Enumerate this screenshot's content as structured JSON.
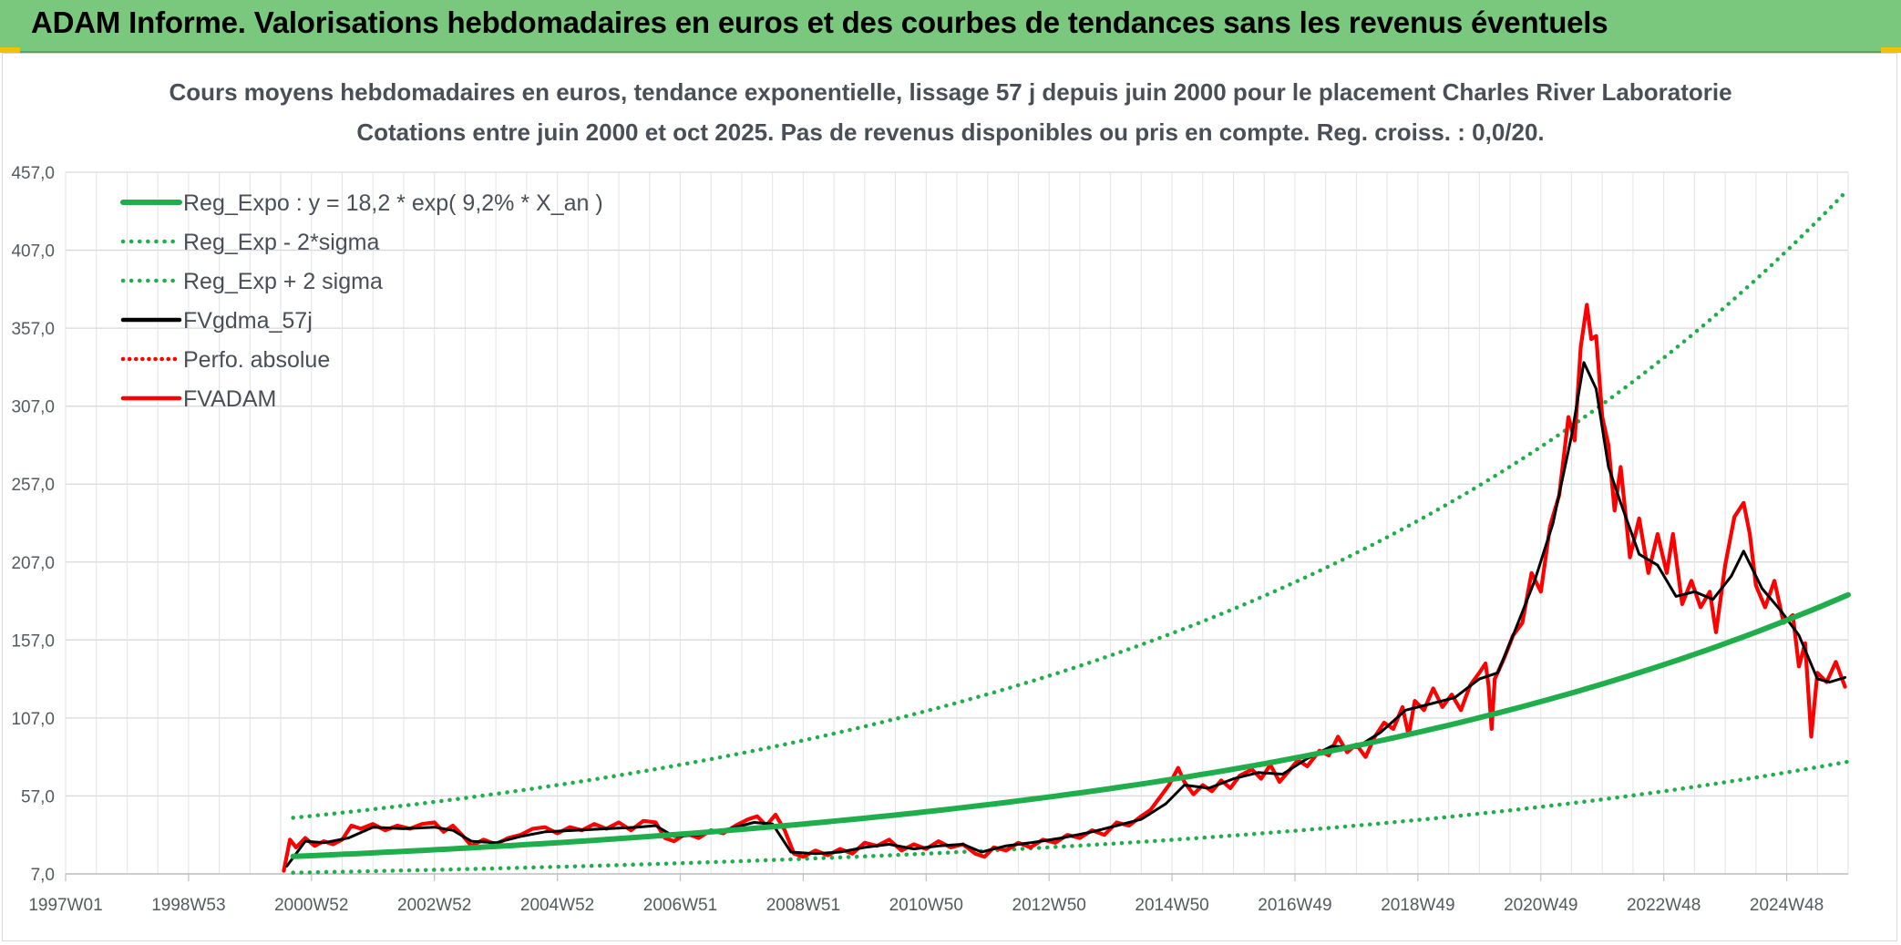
{
  "banner": {
    "title": "ADAM Informe. Valorisations hebdomadaires en euros et des courbes de tendances sans les revenus éventuels",
    "color": "#7ac77e"
  },
  "chart_data": {
    "type": "line",
    "title": "Cours moyens hebdomadaires en euros, tendance exponentielle, lissage 57 j depuis juin 2000 pour le placement Charles River Laboratorie",
    "subtitle": "Cotations entre juin 2000 et oct 2025. Pas de revenus disponibles ou pris en compte. Reg. croiss. : 0,0/20.",
    "xlabel": "",
    "ylabel": "",
    "grid": true,
    "legend_position": "top-left",
    "xlim": [
      1997.0,
      2026.0
    ],
    "ylim": [
      7,
      457
    ],
    "y_ticks": [
      "7,0",
      "57,0",
      "107,0",
      "157,0",
      "207,0",
      "257,0",
      "307,0",
      "357,0",
      "407,0",
      "457,0"
    ],
    "x_ticks": [
      {
        "label": "1997W01",
        "t": 1997.0
      },
      {
        "label": "1998W53",
        "t": 1999.0
      },
      {
        "label": "2000W52",
        "t": 2001.0
      },
      {
        "label": "2002W52",
        "t": 2003.0
      },
      {
        "label": "2004W52",
        "t": 2005.0
      },
      {
        "label": "2006W51",
        "t": 2007.0
      },
      {
        "label": "2008W51",
        "t": 2009.0
      },
      {
        "label": "2010W50",
        "t": 2011.0
      },
      {
        "label": "2012W50",
        "t": 2013.0
      },
      {
        "label": "2014W50",
        "t": 2015.0
      },
      {
        "label": "2016W49",
        "t": 2017.0
      },
      {
        "label": "2018W49",
        "t": 2019.0
      },
      {
        "label": "2020W49",
        "t": 2021.0
      },
      {
        "label": "2022W48",
        "t": 2023.0
      },
      {
        "label": "2024W48",
        "t": 2025.0
      }
    ],
    "series": [
      {
        "name": "Reg_Expo : y = 18,2 * exp( 9,2% *  X_an )",
        "key": "reg",
        "color": "#1fae4b",
        "style": "solid",
        "points": [
          [
            2000.7,
            18.2
          ],
          [
            2026.0,
            186.0
          ]
        ]
      },
      {
        "name": "Reg_Exp - 2*sigma",
        "key": "reg_low",
        "color": "#1fae4b",
        "style": "dotted",
        "points": [
          [
            2000.7,
            7.8
          ],
          [
            2026.0,
            79.0
          ]
        ]
      },
      {
        "name": "Reg_Exp + 2 sigma",
        "key": "reg_high",
        "color": "#1fae4b",
        "style": "dotted",
        "points": [
          [
            2000.7,
            43.0
          ],
          [
            2026.0,
            446.0
          ]
        ]
      },
      {
        "name": "FVgdma_57j",
        "key": "fvgdma",
        "color": "#000000",
        "style": "solid",
        "points": [
          [
            2000.6,
            12
          ],
          [
            2000.9,
            28
          ],
          [
            2001.2,
            27
          ],
          [
            2001.6,
            30
          ],
          [
            2002.0,
            37
          ],
          [
            2002.5,
            36
          ],
          [
            2003.0,
            37
          ],
          [
            2003.3,
            35
          ],
          [
            2003.6,
            28
          ],
          [
            2004.0,
            27
          ],
          [
            2004.4,
            31
          ],
          [
            2004.8,
            34
          ],
          [
            2005.3,
            35
          ],
          [
            2005.8,
            36
          ],
          [
            2006.3,
            37
          ],
          [
            2006.6,
            38
          ],
          [
            2006.9,
            31
          ],
          [
            2007.3,
            32
          ],
          [
            2007.8,
            36
          ],
          [
            2008.2,
            40
          ],
          [
            2008.5,
            39
          ],
          [
            2008.8,
            21
          ],
          [
            2009.2,
            20
          ],
          [
            2009.6,
            21
          ],
          [
            2010.0,
            24
          ],
          [
            2010.4,
            26
          ],
          [
            2010.8,
            23
          ],
          [
            2011.2,
            25
          ],
          [
            2011.6,
            26
          ],
          [
            2011.9,
            21
          ],
          [
            2012.3,
            25
          ],
          [
            2012.7,
            27
          ],
          [
            2013.2,
            30
          ],
          [
            2013.7,
            34
          ],
          [
            2014.1,
            38
          ],
          [
            2014.5,
            42
          ],
          [
            2014.9,
            52
          ],
          [
            2015.2,
            64
          ],
          [
            2015.6,
            62
          ],
          [
            2016.0,
            68
          ],
          [
            2016.4,
            72
          ],
          [
            2016.8,
            71
          ],
          [
            2017.2,
            81
          ],
          [
            2017.6,
            89
          ],
          [
            2018.0,
            88
          ],
          [
            2018.4,
            98
          ],
          [
            2018.8,
            112
          ],
          [
            2019.2,
            116
          ],
          [
            2019.6,
            120
          ],
          [
            2020.0,
            132
          ],
          [
            2020.3,
            136
          ],
          [
            2020.6,
            165
          ],
          [
            2020.9,
            195
          ],
          [
            2021.2,
            232
          ],
          [
            2021.5,
            288
          ],
          [
            2021.7,
            335
          ],
          [
            2021.9,
            318
          ],
          [
            2022.1,
            268
          ],
          [
            2022.3,
            245
          ],
          [
            2022.6,
            212
          ],
          [
            2022.9,
            205
          ],
          [
            2023.2,
            185
          ],
          [
            2023.5,
            188
          ],
          [
            2023.8,
            183
          ],
          [
            2024.1,
            198
          ],
          [
            2024.3,
            214
          ],
          [
            2024.6,
            190
          ],
          [
            2024.9,
            176
          ],
          [
            2025.2,
            160
          ],
          [
            2025.5,
            132
          ],
          [
            2025.7,
            130
          ],
          [
            2025.95,
            133
          ]
        ]
      },
      {
        "name": "Perfo. absolue",
        "key": "perfo",
        "color": "#ff0000",
        "style": "dotted",
        "points": []
      },
      {
        "name": "FVADAM",
        "key": "fvadam",
        "color": "#ff0000",
        "style": "solid",
        "points": [
          [
            2000.55,
            9
          ],
          [
            2000.65,
            29
          ],
          [
            2000.75,
            24
          ],
          [
            2000.9,
            30
          ],
          [
            2001.05,
            25
          ],
          [
            2001.2,
            28
          ],
          [
            2001.35,
            26
          ],
          [
            2001.5,
            29
          ],
          [
            2001.65,
            38
          ],
          [
            2001.8,
            36
          ],
          [
            2002.0,
            39
          ],
          [
            2002.2,
            35
          ],
          [
            2002.4,
            38
          ],
          [
            2002.6,
            36
          ],
          [
            2002.8,
            39
          ],
          [
            2003.0,
            40
          ],
          [
            2003.15,
            34
          ],
          [
            2003.3,
            38
          ],
          [
            2003.45,
            32
          ],
          [
            2003.6,
            25
          ],
          [
            2003.8,
            29
          ],
          [
            2004.0,
            26
          ],
          [
            2004.2,
            30
          ],
          [
            2004.4,
            32
          ],
          [
            2004.6,
            36
          ],
          [
            2004.8,
            37
          ],
          [
            2005.0,
            33
          ],
          [
            2005.2,
            37
          ],
          [
            2005.4,
            35
          ],
          [
            2005.6,
            39
          ],
          [
            2005.8,
            36
          ],
          [
            2006.0,
            40
          ],
          [
            2006.2,
            35
          ],
          [
            2006.4,
            41
          ],
          [
            2006.6,
            40
          ],
          [
            2006.75,
            30
          ],
          [
            2006.9,
            28
          ],
          [
            2007.1,
            33
          ],
          [
            2007.3,
            30
          ],
          [
            2007.5,
            35
          ],
          [
            2007.7,
            33
          ],
          [
            2007.9,
            38
          ],
          [
            2008.1,
            42
          ],
          [
            2008.25,
            44
          ],
          [
            2008.4,
            38
          ],
          [
            2008.55,
            45
          ],
          [
            2008.7,
            35
          ],
          [
            2008.85,
            20
          ],
          [
            2009.0,
            18
          ],
          [
            2009.2,
            22
          ],
          [
            2009.4,
            19
          ],
          [
            2009.6,
            23
          ],
          [
            2009.8,
            20
          ],
          [
            2010.0,
            27
          ],
          [
            2010.2,
            25
          ],
          [
            2010.4,
            29
          ],
          [
            2010.6,
            22
          ],
          [
            2010.8,
            26
          ],
          [
            2011.0,
            23
          ],
          [
            2011.2,
            28
          ],
          [
            2011.4,
            24
          ],
          [
            2011.6,
            26
          ],
          [
            2011.8,
            20
          ],
          [
            2011.95,
            18
          ],
          [
            2012.1,
            24
          ],
          [
            2012.3,
            22
          ],
          [
            2012.5,
            27
          ],
          [
            2012.7,
            24
          ],
          [
            2012.9,
            29
          ],
          [
            2013.1,
            27
          ],
          [
            2013.3,
            32
          ],
          [
            2013.5,
            30
          ],
          [
            2013.7,
            35
          ],
          [
            2013.9,
            32
          ],
          [
            2014.1,
            40
          ],
          [
            2014.3,
            38
          ],
          [
            2014.5,
            44
          ],
          [
            2014.65,
            48
          ],
          [
            2014.8,
            56
          ],
          [
            2014.95,
            64
          ],
          [
            2015.1,
            75
          ],
          [
            2015.2,
            66
          ],
          [
            2015.35,
            58
          ],
          [
            2015.5,
            64
          ],
          [
            2015.65,
            60
          ],
          [
            2015.8,
            67
          ],
          [
            2015.95,
            62
          ],
          [
            2016.1,
            70
          ],
          [
            2016.3,
            74
          ],
          [
            2016.45,
            68
          ],
          [
            2016.6,
            77
          ],
          [
            2016.75,
            66
          ],
          [
            2016.9,
            73
          ],
          [
            2017.05,
            80
          ],
          [
            2017.2,
            76
          ],
          [
            2017.4,
            86
          ],
          [
            2017.55,
            83
          ],
          [
            2017.7,
            95
          ],
          [
            2017.85,
            85
          ],
          [
            2018.0,
            90
          ],
          [
            2018.15,
            82
          ],
          [
            2018.3,
            95
          ],
          [
            2018.45,
            104
          ],
          [
            2018.6,
            100
          ],
          [
            2018.75,
            114
          ],
          [
            2018.85,
            96
          ],
          [
            2018.95,
            118
          ],
          [
            2019.1,
            112
          ],
          [
            2019.25,
            126
          ],
          [
            2019.4,
            114
          ],
          [
            2019.55,
            122
          ],
          [
            2019.7,
            112
          ],
          [
            2019.85,
            128
          ],
          [
            2020.0,
            136
          ],
          [
            2020.1,
            142
          ],
          [
            2020.15,
            128
          ],
          [
            2020.2,
            100
          ],
          [
            2020.25,
            132
          ],
          [
            2020.4,
            145
          ],
          [
            2020.55,
            160
          ],
          [
            2020.7,
            168
          ],
          [
            2020.85,
            200
          ],
          [
            2021.0,
            188
          ],
          [
            2021.15,
            230
          ],
          [
            2021.3,
            250
          ],
          [
            2021.45,
            300
          ],
          [
            2021.55,
            285
          ],
          [
            2021.65,
            345
          ],
          [
            2021.75,
            372
          ],
          [
            2021.82,
            350
          ],
          [
            2021.9,
            352
          ],
          [
            2022.0,
            300
          ],
          [
            2022.1,
            282
          ],
          [
            2022.2,
            240
          ],
          [
            2022.3,
            268
          ],
          [
            2022.45,
            210
          ],
          [
            2022.6,
            235
          ],
          [
            2022.75,
            200
          ],
          [
            2022.9,
            225
          ],
          [
            2023.05,
            200
          ],
          [
            2023.15,
            225
          ],
          [
            2023.3,
            180
          ],
          [
            2023.45,
            195
          ],
          [
            2023.6,
            178
          ],
          [
            2023.75,
            188
          ],
          [
            2023.85,
            162
          ],
          [
            2024.0,
            205
          ],
          [
            2024.15,
            236
          ],
          [
            2024.3,
            245
          ],
          [
            2024.4,
            225
          ],
          [
            2024.5,
            192
          ],
          [
            2024.65,
            178
          ],
          [
            2024.8,
            195
          ],
          [
            2024.95,
            168
          ],
          [
            2025.1,
            173
          ],
          [
            2025.2,
            140
          ],
          [
            2025.3,
            155
          ],
          [
            2025.4,
            95
          ],
          [
            2025.5,
            136
          ],
          [
            2025.65,
            130
          ],
          [
            2025.8,
            143
          ],
          [
            2025.95,
            127
          ]
        ]
      }
    ]
  }
}
